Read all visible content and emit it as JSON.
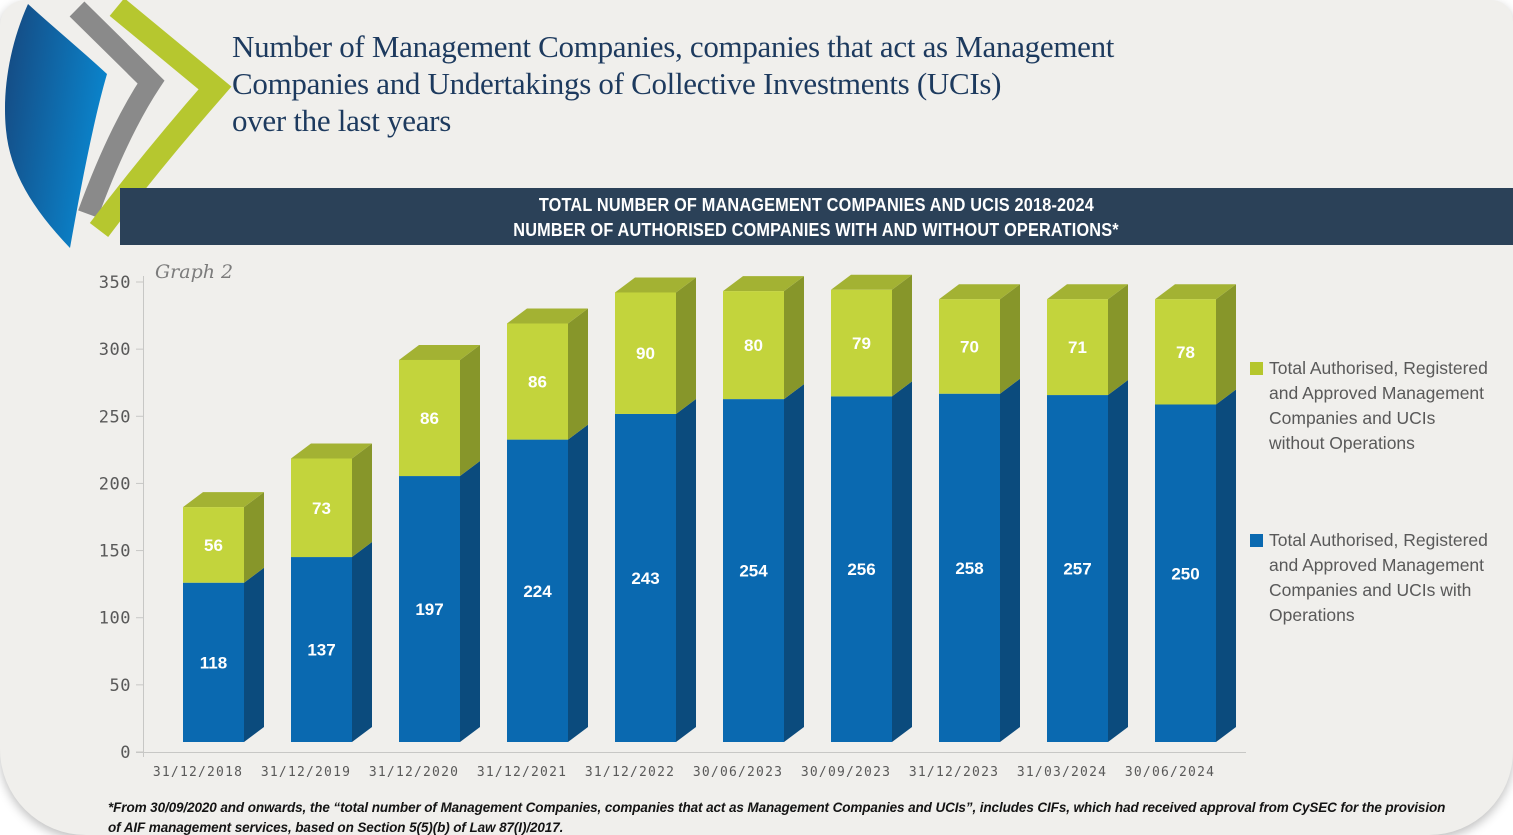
{
  "page": {
    "title_lines": [
      "Number of Management Companies, companies that act as Management",
      "Companies and Undertakings of Collective Investments (UCIs)",
      "over the last years"
    ],
    "banner_line1": "TOTAL NUMBER OF MANAGEMENT COMPANIES AND UCIS 2018-2024",
    "banner_line2": "NUMBER OF AUTHORISED COMPANIES WITH AND WITHOUT OPERATIONS*",
    "graph_label": "Graph 2",
    "footnote_line1": "*From 30/09/2020 and onwards, the “total number of Management Companies, companies that act as Management Companies and UCIs”, includes CIFs, which had received approval from CySEC for the provision",
    "footnote_line2": "of AIF management services, based on Section 5(5)(b) of Law 87(I)/2017."
  },
  "colors": {
    "page_bg": "#f0efec",
    "banner_bg": "#2b4158",
    "title_text": "#1d3a5e",
    "bar_blue_front": "#0a69b0",
    "bar_blue_side": "#0b4b7d",
    "bar_green_front": "#c3d43c",
    "bar_green_side": "#87962a",
    "bar_green_top": "#a3b233",
    "axis_line": "#c7c7c5",
    "axis_text": "#595959",
    "legend_text": "#595959",
    "data_label_text": "#ffffff",
    "logo_blue_dark": "#16477e",
    "logo_blue_light": "#0a84cc",
    "logo_gray": "#8a8a8a",
    "logo_green": "#b6c72f"
  },
  "chart_data": {
    "type": "bar",
    "stacked": true,
    "style": "3d",
    "title": "TOTAL NUMBER OF MANAGEMENT COMPANIES AND UCIS 2018-2024 — NUMBER OF AUTHORISED COMPANIES WITH AND WITHOUT OPERATIONS*",
    "categories": [
      "31/12/2018",
      "31/12/2019",
      "31/12/2020",
      "31/12/2021",
      "31/12/2022",
      "30/06/2023",
      "30/09/2023",
      "31/12/2023",
      "31/03/2024",
      "30/06/2024"
    ],
    "series": [
      {
        "name": "Total Authorised, Registered and Approved Management Companies and UCIs with Operations",
        "color": "#0a69b0",
        "values": [
          118,
          137,
          197,
          224,
          243,
          254,
          256,
          258,
          257,
          250
        ]
      },
      {
        "name": "Total Authorised, Registered and Approved Management Companies and UCIs without Operations",
        "color": "#c3d43c",
        "values": [
          56,
          73,
          86,
          86,
          90,
          80,
          79,
          70,
          71,
          78
        ]
      }
    ],
    "xlabel": "",
    "ylabel": "",
    "ylim": [
      0,
      350
    ],
    "ytick_step": 50,
    "grid": false,
    "legend_position": "right",
    "data_labels": true
  },
  "legend": {
    "items": [
      {
        "color": "#b5c62c",
        "lines": [
          "Total Authorised, Registered",
          "and Approved Management",
          "Companies and UCIs",
          "without Operations"
        ]
      },
      {
        "color": "#0a69b0",
        "lines": [
          "Total Authorised, Registered",
          "and Approved Management",
          "Companies and UCIs with",
          "Operations"
        ]
      }
    ]
  }
}
